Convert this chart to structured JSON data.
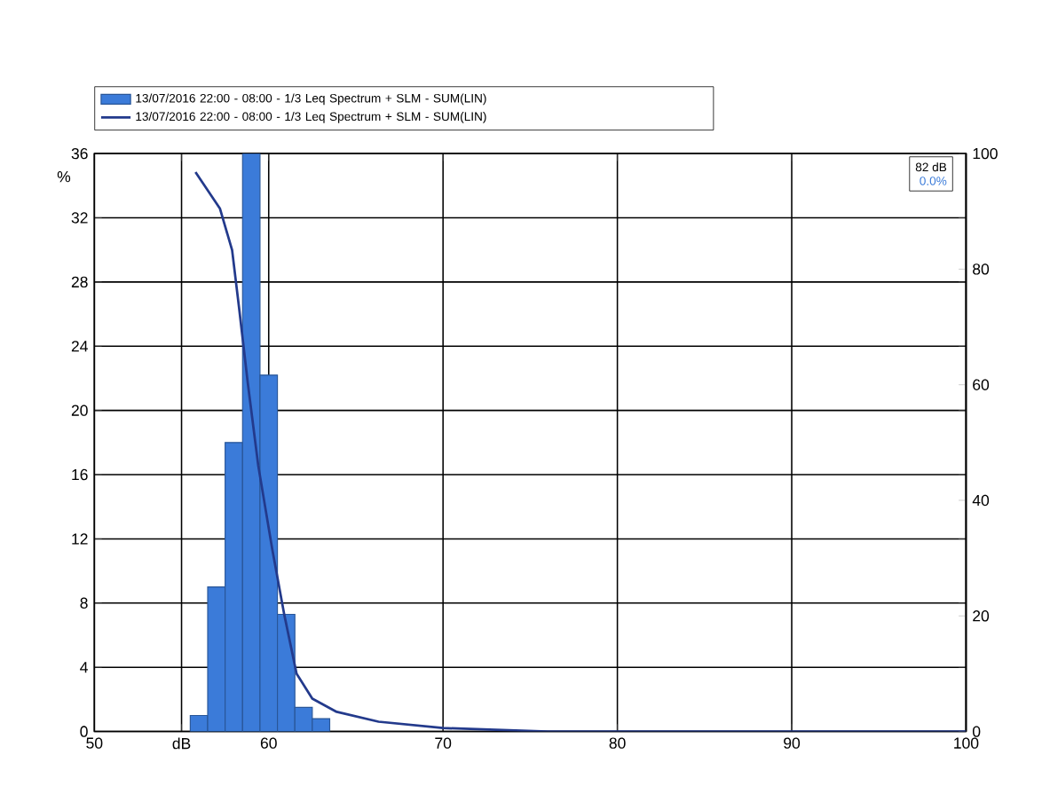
{
  "chart_data": {
    "type": "histogram",
    "ylabel": "%",
    "xlim": [
      50,
      100
    ],
    "xticks": [
      50,
      {
        "value": 55,
        "label": "dB"
      },
      60,
      70,
      80,
      90,
      100
    ],
    "ylim": [
      0,
      36
    ],
    "yticks": [
      0,
      4,
      8,
      12,
      16,
      20,
      24,
      28,
      32,
      36
    ],
    "y2lim": [
      0,
      100
    ],
    "y2ticks": [
      0,
      20,
      40,
      60,
      80,
      100
    ],
    "grid": true,
    "legend": "top",
    "bins": [
      55.5,
      56.5,
      57.5,
      58.5,
      59.5,
      60.5,
      61.5,
      62.5,
      63.5
    ],
    "series": [
      {
        "name": "13/07/2016 22:00 - 08:00 - 1/3 Leq Spectrum + SLM - SUM(LIN)",
        "color": "#3b7bd9",
        "values": [
          1,
          9,
          18,
          36,
          22.2,
          7.3,
          1.5,
          0.8
        ]
      },
      {
        "name": "13/07/2016 22:00 - 08:00 - 1/3 Leq Spectrum + SLM - SUM(LIN)",
        "type": "line",
        "axis": "y2",
        "color": "#233a8c",
        "x": [
          55.8,
          57.2,
          57.9,
          58.3,
          58.8,
          59.4,
          60.2,
          60.9,
          61.6,
          62.5,
          63.9,
          66.3,
          70,
          76,
          100
        ],
        "values": [
          96.8,
          90.5,
          83.3,
          73.3,
          60.3,
          46,
          31.6,
          20.1,
          10,
          5.7,
          3.4,
          1.7,
          0.6,
          0,
          0
        ]
      }
    ],
    "annotations": [
      "82 dB",
      "0.0%"
    ]
  }
}
